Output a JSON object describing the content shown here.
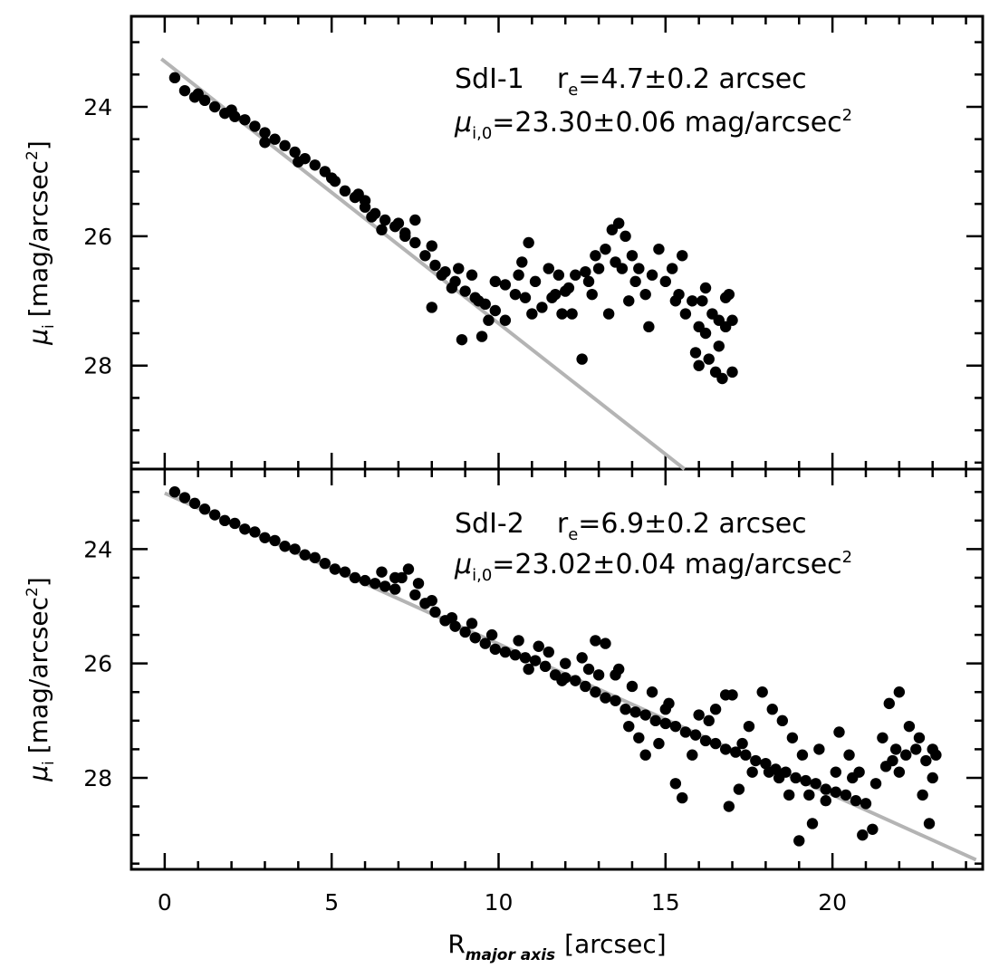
{
  "chart_data": [
    {
      "type": "scatter",
      "panel": "top",
      "annotation": {
        "name": "SdI-1",
        "re_prefix": "r",
        "re_sub": "e",
        "re_value": "=4.7±0.2 arcsec",
        "mu_prefix": "μ",
        "mu_sub": "i,0",
        "mu_value": "=23.30±0.06 mag/arcsec",
        "mu_sup": "2"
      },
      "ylabel": {
        "prefix": "μ",
        "sub": "i",
        "rest": "[mag/arcsec",
        "sup": "2",
        "close": "]"
      },
      "xlim": [
        -1,
        24.5
      ],
      "ylim": [
        29.6,
        22.6
      ],
      "yticks": [
        24,
        26,
        28
      ],
      "ytick_labels": [
        "24",
        "26",
        "28"
      ],
      "fit_line": {
        "intercept": 23.3,
        "slope": 0.4047,
        "x_start": -0.1,
        "x_end": 16.0,
        "color": "#b4b4b4"
      },
      "points": [
        [
          0.3,
          23.55
        ],
        [
          0.6,
          23.75
        ],
        [
          0.9,
          23.85
        ],
        [
          1.2,
          23.9
        ],
        [
          1.5,
          24.0
        ],
        [
          1.8,
          24.1
        ],
        [
          2.1,
          24.15
        ],
        [
          2.4,
          24.2
        ],
        [
          2.7,
          24.3
        ],
        [
          3.0,
          24.4
        ],
        [
          3.3,
          24.5
        ],
        [
          3.6,
          24.6
        ],
        [
          3.9,
          24.7
        ],
        [
          4.2,
          24.8
        ],
        [
          4.5,
          24.9
        ],
        [
          4.8,
          25.0
        ],
        [
          5.1,
          25.15
        ],
        [
          5.4,
          25.3
        ],
        [
          5.7,
          25.4
        ],
        [
          6.0,
          25.55
        ],
        [
          6.3,
          25.65
        ],
        [
          6.6,
          25.75
        ],
        [
          6.9,
          25.85
        ],
        [
          7.2,
          25.95
        ],
        [
          7.5,
          26.1
        ],
        [
          7.8,
          26.3
        ],
        [
          8.1,
          26.45
        ],
        [
          8.4,
          26.55
        ],
        [
          8.7,
          26.7
        ],
        [
          9.0,
          26.85
        ],
        [
          9.3,
          26.95
        ],
        [
          9.6,
          27.05
        ],
        [
          9.9,
          27.15
        ],
        [
          10.2,
          27.3
        ],
        [
          1.0,
          23.8
        ],
        [
          2.0,
          24.05
        ],
        [
          3.0,
          24.55
        ],
        [
          4.0,
          24.85
        ],
        [
          5.0,
          25.1
        ],
        [
          6.0,
          25.45
        ],
        [
          6.5,
          25.9
        ],
        [
          7.0,
          25.8
        ],
        [
          7.5,
          25.75
        ],
        [
          8.0,
          26.15
        ],
        [
          8.3,
          26.6
        ],
        [
          8.8,
          26.5
        ],
        [
          9.2,
          26.6
        ],
        [
          7.2,
          26.0
        ],
        [
          5.8,
          25.35
        ],
        [
          6.2,
          25.7
        ],
        [
          8.0,
          27.1
        ],
        [
          8.9,
          27.6
        ],
        [
          9.5,
          27.55
        ],
        [
          9.9,
          26.7
        ],
        [
          10.2,
          26.75
        ],
        [
          10.5,
          26.9
        ],
        [
          10.7,
          26.4
        ],
        [
          10.9,
          26.1
        ],
        [
          11.1,
          26.7
        ],
        [
          11.3,
          27.1
        ],
        [
          11.5,
          26.5
        ],
        [
          11.7,
          26.9
        ],
        [
          11.9,
          27.2
        ],
        [
          12.1,
          26.8
        ],
        [
          12.3,
          26.6
        ],
        [
          12.5,
          27.9
        ],
        [
          12.7,
          26.7
        ],
        [
          12.9,
          26.3
        ],
        [
          13.0,
          26.5
        ],
        [
          13.2,
          26.2
        ],
        [
          13.4,
          25.9
        ],
        [
          13.5,
          26.4
        ],
        [
          13.6,
          25.8
        ],
        [
          13.8,
          26.0
        ],
        [
          14.0,
          26.3
        ],
        [
          14.2,
          26.5
        ],
        [
          14.4,
          26.9
        ],
        [
          14.6,
          26.6
        ],
        [
          14.8,
          26.2
        ],
        [
          15.0,
          26.7
        ],
        [
          15.2,
          26.5
        ],
        [
          15.4,
          26.9
        ],
        [
          15.6,
          27.2
        ],
        [
          15.8,
          27.0
        ],
        [
          16.0,
          27.4
        ],
        [
          16.2,
          27.5
        ],
        [
          16.4,
          27.2
        ],
        [
          16.6,
          27.7
        ],
        [
          16.8,
          27.4
        ],
        [
          17.0,
          27.3
        ],
        [
          16.0,
          28.0
        ],
        [
          16.3,
          27.9
        ],
        [
          16.5,
          28.1
        ],
        [
          16.7,
          28.2
        ],
        [
          17.0,
          28.1
        ],
        [
          16.9,
          26.9
        ],
        [
          16.2,
          26.8
        ],
        [
          15.5,
          26.3
        ],
        [
          14.5,
          27.4
        ],
        [
          13.9,
          27.0
        ],
        [
          13.3,
          27.2
        ],
        [
          12.8,
          26.9
        ],
        [
          12.2,
          27.2
        ],
        [
          11.8,
          26.6
        ],
        [
          11.0,
          27.2
        ],
        [
          10.8,
          26.95
        ],
        [
          10.6,
          26.6
        ],
        [
          9.7,
          27.3
        ],
        [
          9.4,
          27.0
        ],
        [
          8.6,
          26.8
        ],
        [
          15.9,
          27.8
        ],
        [
          16.1,
          27.0
        ],
        [
          16.6,
          27.3
        ],
        [
          16.8,
          26.95
        ],
        [
          15.3,
          27.0
        ],
        [
          14.1,
          26.7
        ],
        [
          13.7,
          26.5
        ],
        [
          12.6,
          26.55
        ],
        [
          12.0,
          26.85
        ],
        [
          11.6,
          26.95
        ]
      ]
    },
    {
      "type": "scatter",
      "panel": "bottom",
      "annotation": {
        "name": "SdI-2",
        "re_prefix": "r",
        "re_sub": "e",
        "re_value": "=6.9±0.2 arcsec",
        "mu_prefix": "μ",
        "mu_sub": "i,0",
        "mu_value": "=23.02±0.04 mag/arcsec",
        "mu_sup": "2"
      },
      "ylabel": {
        "prefix": "μ",
        "sub": "i",
        "rest": "[mag/arcsec",
        "sup": "2",
        "close": "]"
      },
      "xlabel": {
        "prefix": "R",
        "sub": "major axis",
        "rest": "[arcsec]"
      },
      "xlim": [
        -1,
        24.5
      ],
      "ylim": [
        29.6,
        22.6
      ],
      "xticks": [
        0,
        5,
        10,
        15,
        20
      ],
      "xtick_labels": [
        "0",
        "5",
        "10",
        "15",
        "20"
      ],
      "yticks": [
        24,
        26,
        28
      ],
      "ytick_labels": [
        "24",
        "26",
        "28"
      ],
      "fit_line": {
        "intercept": 23.02,
        "slope": 0.2639,
        "x_start": 0.0,
        "x_end": 24.3,
        "color": "#b4b4b4"
      },
      "points": [
        [
          0.3,
          23.0
        ],
        [
          0.6,
          23.1
        ],
        [
          0.9,
          23.2
        ],
        [
          1.2,
          23.3
        ],
        [
          1.5,
          23.4
        ],
        [
          1.8,
          23.5
        ],
        [
          2.1,
          23.55
        ],
        [
          2.4,
          23.65
        ],
        [
          2.7,
          23.7
        ],
        [
          3.0,
          23.8
        ],
        [
          3.3,
          23.85
        ],
        [
          3.6,
          23.95
        ],
        [
          3.9,
          24.0
        ],
        [
          4.2,
          24.1
        ],
        [
          4.5,
          24.15
        ],
        [
          4.8,
          24.25
        ],
        [
          5.1,
          24.35
        ],
        [
          5.4,
          24.4
        ],
        [
          5.7,
          24.5
        ],
        [
          6.0,
          24.55
        ],
        [
          6.3,
          24.6
        ],
        [
          6.6,
          24.65
        ],
        [
          6.9,
          24.7
        ],
        [
          7.1,
          24.5
        ],
        [
          7.3,
          24.35
        ],
        [
          7.5,
          24.8
        ],
        [
          7.8,
          24.95
        ],
        [
          8.1,
          25.1
        ],
        [
          8.4,
          25.25
        ],
        [
          8.7,
          25.35
        ],
        [
          9.0,
          25.45
        ],
        [
          9.3,
          25.55
        ],
        [
          9.6,
          25.65
        ],
        [
          9.9,
          25.75
        ],
        [
          10.2,
          25.8
        ],
        [
          10.5,
          25.85
        ],
        [
          10.8,
          25.9
        ],
        [
          11.1,
          25.95
        ],
        [
          11.4,
          26.05
        ],
        [
          11.7,
          26.2
        ],
        [
          12.0,
          26.25
        ],
        [
          12.3,
          26.3
        ],
        [
          12.6,
          26.4
        ],
        [
          12.9,
          26.5
        ],
        [
          13.2,
          26.6
        ],
        [
          13.5,
          26.65
        ],
        [
          13.8,
          26.8
        ],
        [
          14.1,
          26.85
        ],
        [
          14.4,
          26.9
        ],
        [
          14.7,
          27.0
        ],
        [
          15.0,
          27.05
        ],
        [
          15.3,
          27.1
        ],
        [
          15.6,
          27.2
        ],
        [
          15.9,
          27.25
        ],
        [
          16.2,
          27.35
        ],
        [
          16.5,
          27.4
        ],
        [
          16.8,
          27.5
        ],
        [
          17.1,
          27.55
        ],
        [
          17.4,
          27.6
        ],
        [
          17.7,
          27.7
        ],
        [
          18.0,
          27.75
        ],
        [
          18.3,
          27.85
        ],
        [
          18.6,
          27.9
        ],
        [
          18.9,
          28.0
        ],
        [
          19.2,
          28.05
        ],
        [
          19.5,
          28.1
        ],
        [
          19.8,
          28.2
        ],
        [
          20.1,
          28.25
        ],
        [
          20.4,
          28.3
        ],
        [
          20.7,
          28.4
        ],
        [
          21.0,
          28.45
        ],
        [
          21.3,
          28.1
        ],
        [
          21.6,
          27.8
        ],
        [
          21.9,
          27.5
        ],
        [
          22.2,
          27.6
        ],
        [
          22.5,
          27.5
        ],
        [
          22.8,
          27.7
        ],
        [
          23.0,
          27.5
        ],
        [
          23.0,
          28.0
        ],
        [
          22.9,
          28.8
        ],
        [
          12.5,
          25.9
        ],
        [
          12.9,
          25.6
        ],
        [
          13.2,
          25.65
        ],
        [
          12.0,
          26.0
        ],
        [
          11.2,
          25.7
        ],
        [
          10.9,
          26.1
        ],
        [
          13.6,
          26.1
        ],
        [
          14.0,
          26.4
        ],
        [
          14.6,
          26.5
        ],
        [
          15.0,
          26.8
        ],
        [
          15.3,
          28.1
        ],
        [
          15.5,
          28.35
        ],
        [
          14.8,
          27.4
        ],
        [
          14.2,
          27.3
        ],
        [
          13.9,
          27.1
        ],
        [
          16.5,
          26.8
        ],
        [
          16.8,
          26.55
        ],
        [
          17.0,
          26.55
        ],
        [
          17.5,
          27.1
        ],
        [
          17.9,
          26.5
        ],
        [
          18.2,
          26.8
        ],
        [
          18.5,
          27.0
        ],
        [
          18.8,
          27.3
        ],
        [
          19.0,
          29.1
        ],
        [
          19.4,
          28.8
        ],
        [
          19.8,
          28.4
        ],
        [
          20.1,
          27.9
        ],
        [
          20.5,
          27.6
        ],
        [
          20.9,
          29.0
        ],
        [
          21.2,
          28.9
        ],
        [
          21.7,
          26.7
        ],
        [
          22.0,
          26.5
        ],
        [
          22.3,
          27.1
        ],
        [
          22.7,
          28.3
        ],
        [
          22.0,
          27.9
        ],
        [
          21.5,
          27.3
        ],
        [
          20.8,
          27.9
        ],
        [
          20.2,
          27.2
        ],
        [
          19.6,
          27.5
        ],
        [
          19.1,
          27.6
        ],
        [
          18.7,
          28.3
        ],
        [
          18.1,
          27.9
        ],
        [
          17.6,
          27.9
        ],
        [
          17.2,
          28.2
        ],
        [
          16.9,
          28.5
        ],
        [
          16.3,
          27.0
        ],
        [
          15.8,
          27.6
        ],
        [
          14.4,
          27.6
        ],
        [
          13.5,
          26.2
        ],
        [
          12.7,
          26.1
        ],
        [
          11.9,
          26.3
        ],
        [
          11.5,
          25.8
        ],
        [
          10.6,
          25.6
        ],
        [
          9.8,
          25.5
        ],
        [
          9.2,
          25.3
        ],
        [
          8.6,
          25.2
        ],
        [
          8.0,
          24.9
        ],
        [
          7.6,
          24.6
        ],
        [
          6.9,
          24.5
        ],
        [
          6.5,
          24.4
        ],
        [
          18.4,
          28.0
        ],
        [
          19.3,
          28.3
        ],
        [
          20.6,
          28.0
        ],
        [
          21.8,
          27.7
        ],
        [
          22.6,
          27.3
        ],
        [
          23.1,
          27.6
        ],
        [
          17.3,
          27.4
        ],
        [
          16.0,
          26.9
        ],
        [
          15.1,
          26.7
        ],
        [
          13.0,
          26.2
        ]
      ]
    }
  ],
  "shared_xlabel": {
    "prefix": "R",
    "sub": "major axis",
    "rest": "[arcsec]"
  }
}
